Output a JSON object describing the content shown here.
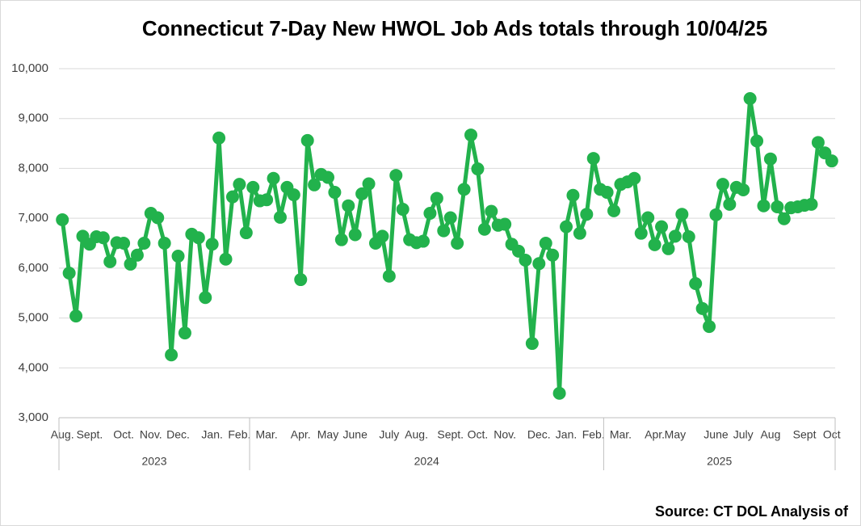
{
  "chart_data": {
    "type": "line",
    "title": "Connecticut 7-Day New HWOL Job Ads totals through 10/04/25",
    "source": "Source: CT DOL Analysis of",
    "categories": [
      "Aug.",
      null,
      null,
      null,
      "Sept.",
      null,
      null,
      null,
      null,
      "Oct.",
      null,
      null,
      null,
      "Nov.",
      null,
      null,
      null,
      "Dec.",
      null,
      null,
      null,
      null,
      "Jan.",
      null,
      null,
      null,
      "Feb.",
      null,
      null,
      null,
      "Mar.",
      null,
      null,
      null,
      null,
      "Apr.",
      null,
      null,
      null,
      "May",
      null,
      null,
      null,
      "June",
      null,
      null,
      null,
      null,
      "July",
      null,
      null,
      null,
      "Aug.",
      null,
      null,
      null,
      null,
      "Sept.",
      null,
      null,
      null,
      "Oct.",
      null,
      null,
      null,
      "Nov.",
      null,
      null,
      null,
      null,
      "Dec.",
      null,
      null,
      null,
      "Jan.",
      null,
      null,
      null,
      "Feb.",
      null,
      null,
      null,
      "Mar.",
      null,
      null,
      null,
      null,
      "Apr.",
      null,
      null,
      "May",
      null,
      null,
      null,
      null,
      null,
      "June",
      null,
      null,
      null,
      "July",
      null,
      null,
      null,
      "Aug",
      null,
      null,
      null,
      null,
      "Sept",
      null,
      null,
      null,
      "Oct"
    ],
    "year_groups": [
      {
        "label": "2023",
        "start": 0,
        "end": 27
      },
      {
        "label": "2024",
        "start": 28,
        "end": 79
      },
      {
        "label": "2025",
        "start": 80,
        "end": 113
      }
    ],
    "series": [
      {
        "name": "New HWOL Job Ads",
        "color": "#22b24c",
        "values": [
          6970,
          5900,
          5040,
          6640,
          6480,
          6630,
          6610,
          6130,
          6510,
          6500,
          6080,
          6260,
          6500,
          7100,
          7010,
          6500,
          4260,
          6240,
          4700,
          6680,
          6610,
          5410,
          6480,
          8610,
          6180,
          7430,
          7680,
          6710,
          7620,
          7350,
          7370,
          7800,
          7020,
          7620,
          7470,
          5770,
          8560,
          7670,
          7880,
          7820,
          7520,
          6570,
          7250,
          6670,
          7490,
          7690,
          6500,
          6640,
          5840,
          7860,
          7180,
          6570,
          6510,
          6540,
          7100,
          7400,
          6750,
          7010,
          6500,
          7580,
          8670,
          7990,
          6780,
          7140,
          6860,
          6880,
          6480,
          6340,
          6160,
          4490,
          6090,
          6500,
          6260,
          3490,
          6830,
          7460,
          6700,
          7080,
          8200,
          7580,
          7520,
          7150,
          7680,
          7730,
          7800,
          6700,
          7010,
          6470,
          6830,
          6390,
          6640,
          7080,
          6630,
          5690,
          5190,
          4830,
          7070,
          7680,
          7280,
          7620,
          7570,
          9400,
          8550,
          7250,
          8190,
          7230,
          6990,
          7210,
          7230,
          7260,
          7280,
          8520,
          8310,
          8150
        ]
      }
    ],
    "ylim": [
      3000,
      10000
    ],
    "yticks": [
      {
        "value": 3000,
        "label": "3,000"
      },
      {
        "value": 4000,
        "label": "4,000"
      },
      {
        "value": 5000,
        "label": "5,000"
      },
      {
        "value": 6000,
        "label": "6,000"
      },
      {
        "value": 7000,
        "label": "7,000"
      },
      {
        "value": 8000,
        "label": "8,000"
      },
      {
        "value": 9000,
        "label": "9,000"
      },
      {
        "value": 10000,
        "label": "10,000"
      }
    ],
    "grid": true
  }
}
